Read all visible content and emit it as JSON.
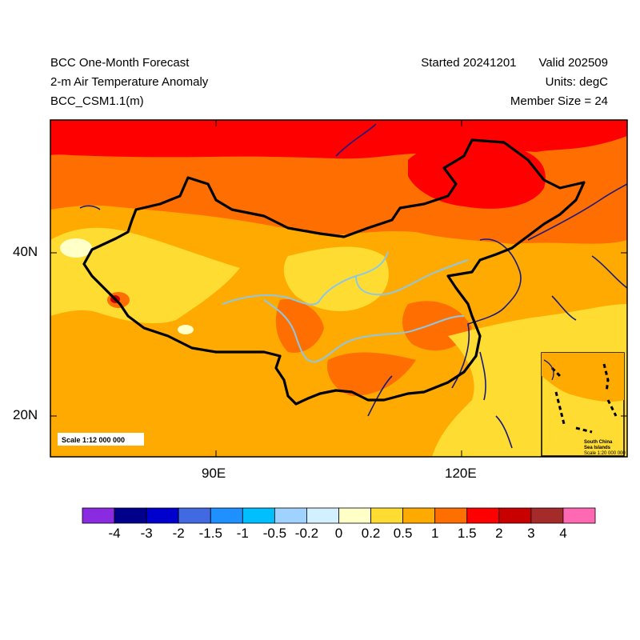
{
  "header": {
    "title": "BCC One-Month Forecast",
    "variable": "2-m Air Temperature Anomaly",
    "model": "BCC_CSM1.1(m)",
    "started": "Started 20241201",
    "valid": "Valid 202509",
    "units": "Units: degC",
    "member_size": "Member Size = 24"
  },
  "map": {
    "scale_main": "Scale 1:12 000 000",
    "inset_line1": "South China",
    "inset_line2": "Sea Islands",
    "inset_scale": "Scale 1:20 000 000",
    "x_ticks": [
      "90E",
      "120E"
    ],
    "y_ticks": [
      "40N",
      "20N"
    ]
  },
  "colorbar": {
    "labels": [
      "-4",
      "-3",
      "-2",
      "-1.5",
      "-1",
      "-0.5",
      "-0.2",
      "0",
      "0.2",
      "0.5",
      "1",
      "1.5",
      "2",
      "3",
      "4"
    ],
    "colors": [
      "#8a2be2",
      "#00008b",
      "#0000cd",
      "#4169e1",
      "#1e90ff",
      "#00bfff",
      "#a0d2ff",
      "#d2f0ff",
      "#ffffc8",
      "#ffdc32",
      "#ffaa00",
      "#ff6e00",
      "#ff0000",
      "#c80000",
      "#a52a2a",
      "#ff69b4"
    ]
  },
  "colors": {
    "warm_light": "#ffdc32",
    "warm_mid": "#ffaa00",
    "warm_orange": "#ff6e00",
    "warm_red": "#ff0000",
    "border": "#000000",
    "river": "#8cc8e6",
    "coast": "#1a1a80"
  }
}
